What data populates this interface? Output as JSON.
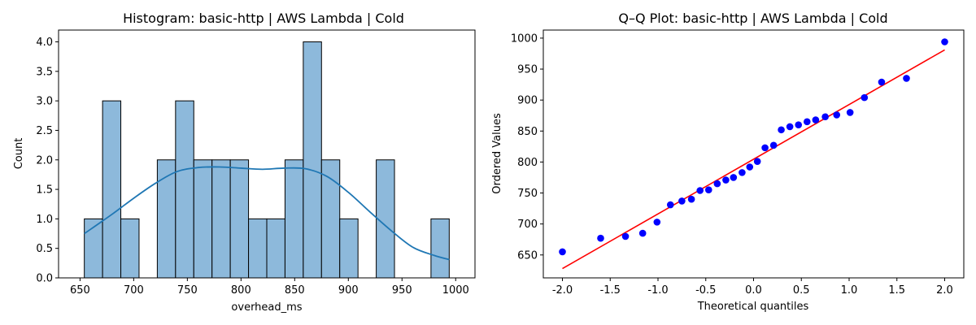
{
  "chart_data": [
    {
      "type": "histogram",
      "title": "Histogram: basic-http | AWS Lambda | Cold",
      "xlabel": "overhead_ms",
      "ylabel": "Count",
      "xlim": [
        630,
        1018
      ],
      "ylim": [
        0,
        4.2
      ],
      "xticks": [
        650,
        700,
        750,
        800,
        850,
        900,
        950,
        1000
      ],
      "yticks": [
        0.0,
        0.5,
        1.0,
        1.5,
        2.0,
        2.5,
        3.0,
        3.5,
        4.0
      ],
      "bin_start": 654,
      "bin_width": 17,
      "counts": [
        1,
        3,
        1,
        0,
        2,
        3,
        2,
        2,
        2,
        1,
        1,
        2,
        4,
        2,
        1,
        0,
        2,
        0,
        0,
        1
      ],
      "bar_color": "#8db9db",
      "kde_color": "#1f77b4",
      "kde": {
        "x": [
          654,
          680,
          700,
          720,
          740,
          760,
          780,
          800,
          820,
          840,
          860,
          880,
          900,
          920,
          940,
          960,
          980,
          994
        ],
        "y": [
          0.75,
          1.08,
          1.35,
          1.6,
          1.8,
          1.87,
          1.88,
          1.86,
          1.84,
          1.86,
          1.85,
          1.72,
          1.45,
          1.12,
          0.8,
          0.52,
          0.38,
          0.31
        ]
      }
    },
    {
      "type": "scatter",
      "title": "Q–Q Plot: basic-http | AWS Lambda | Cold",
      "xlabel": "Theoretical quantiles",
      "ylabel": "Ordered Values",
      "xlim": [
        -2.2,
        2.2
      ],
      "ylim": [
        613,
        1013
      ],
      "xticks": [
        -2.0,
        -1.5,
        -1.0,
        -0.5,
        0.0,
        0.5,
        1.0,
        1.5,
        2.0
      ],
      "yticks": [
        650,
        700,
        750,
        800,
        850,
        900,
        950,
        1000
      ],
      "point_color": "#0000ff",
      "line_color": "#ff0000",
      "points": {
        "x": [
          -2.0,
          -1.6,
          -1.34,
          -1.16,
          -1.01,
          -0.87,
          -0.75,
          -0.65,
          -0.56,
          -0.47,
          -0.38,
          -0.29,
          -0.21,
          -0.12,
          -0.04,
          0.04,
          0.12,
          0.21,
          0.29,
          0.38,
          0.47,
          0.56,
          0.65,
          0.75,
          0.87,
          1.01,
          1.16,
          1.34,
          1.6,
          2.0
        ],
        "y": [
          655,
          677,
          680,
          685,
          703,
          731,
          737,
          740,
          754,
          755,
          765,
          771,
          775,
          783,
          792,
          801,
          823,
          827,
          852,
          857,
          860,
          865,
          868,
          873,
          876,
          880,
          904,
          929,
          935,
          994
        ]
      },
      "fit_line": {
        "x": [
          -2.0,
          2.0
        ],
        "y": [
          628,
          981
        ]
      }
    }
  ]
}
